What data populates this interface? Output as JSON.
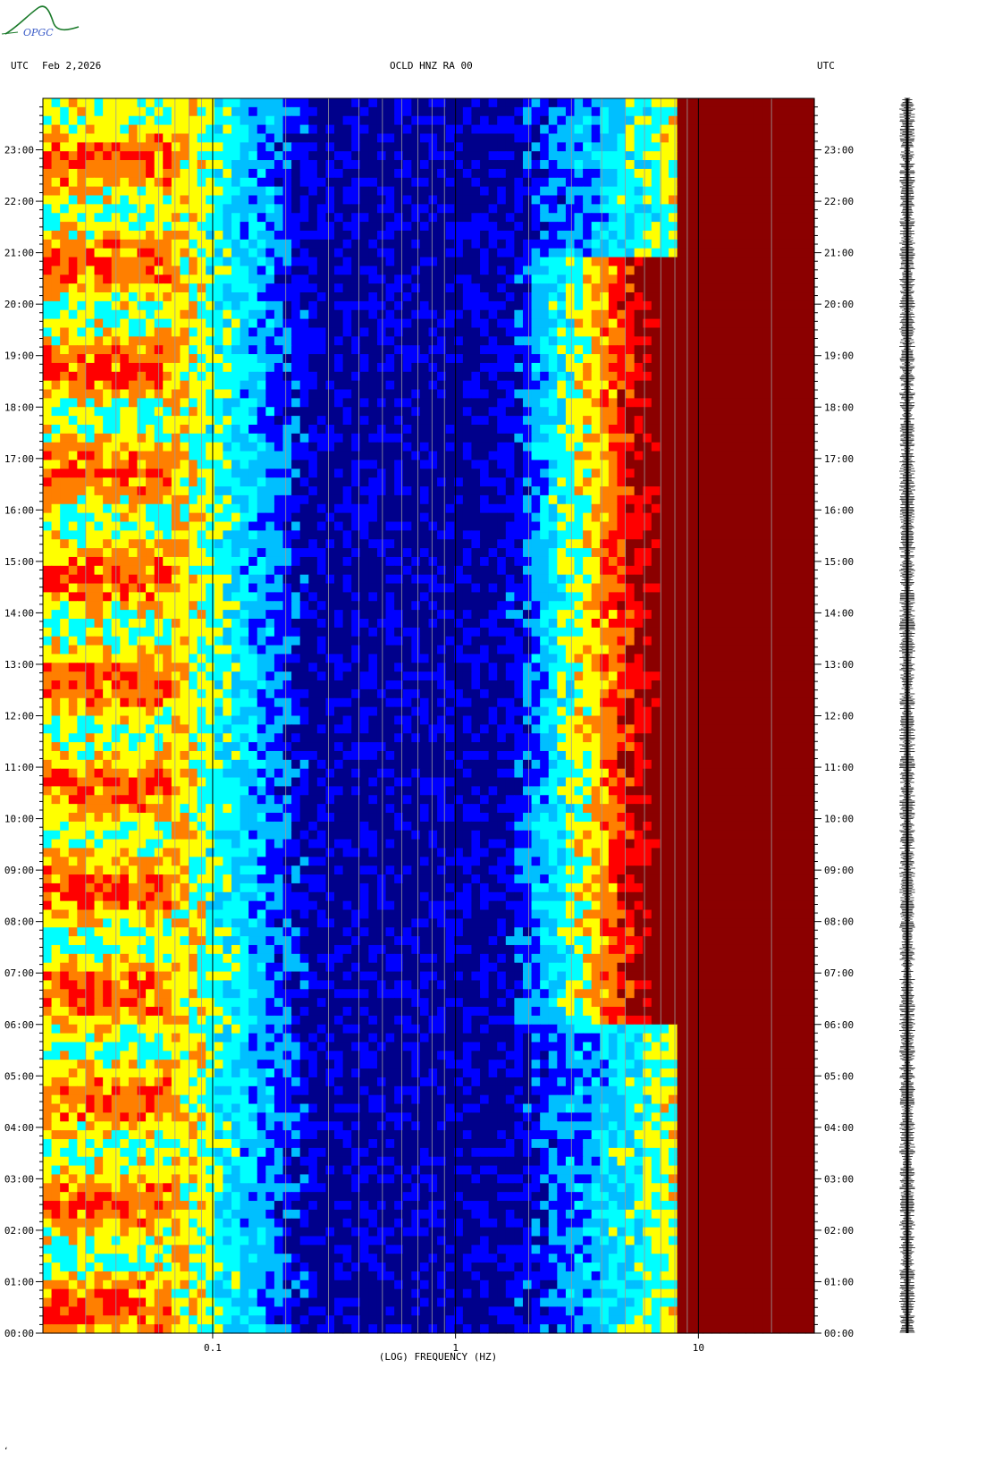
{
  "header": {
    "left_utc": "UTC",
    "date": "Feb 2,2026",
    "station": "OCLD HNZ RA 00",
    "right_utc": "UTC"
  },
  "logo_text": "OPGC",
  "footer_mark": "ʻ",
  "chart_data": {
    "type": "heatmap",
    "title": "OCLD HNZ RA 00",
    "xlabel": "(LOG) FREQUENCY (HZ)",
    "ylabel": "UTC",
    "x_scale": "log",
    "xlim": [
      0.02,
      30
    ],
    "x_ticks": [
      {
        "value": 0.1,
        "label": "0.1"
      },
      {
        "value": 1,
        "label": "1"
      },
      {
        "value": 10,
        "label": "10"
      }
    ],
    "ylim_hours": [
      0,
      24
    ],
    "y_ticks": [
      "00:00",
      "01:00",
      "02:00",
      "03:00",
      "04:00",
      "05:00",
      "06:00",
      "07:00",
      "08:00",
      "09:00",
      "10:00",
      "11:00",
      "12:00",
      "13:00",
      "14:00",
      "15:00",
      "16:00",
      "17:00",
      "18:00",
      "19:00",
      "20:00",
      "21:00",
      "22:00",
      "23:00"
    ],
    "colormap": [
      "#00008b",
      "#0000ff",
      "#00bfff",
      "#00ffff",
      "#ffff00",
      "#ff7f00",
      "#ff0000",
      "#8b0000"
    ],
    "colors": {
      "saturated": "#8b0000",
      "trace": "#000000",
      "logo": "#1a7a2a",
      "logo_text": "#3a5bc7"
    }
  }
}
